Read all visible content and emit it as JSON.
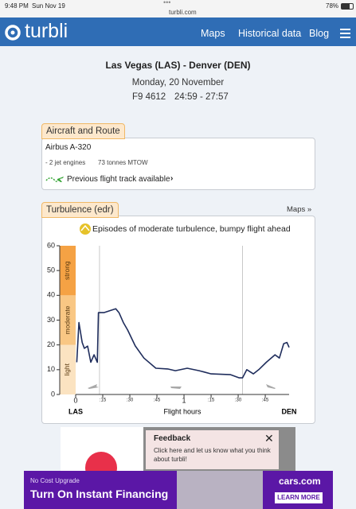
{
  "status_bar": {
    "time": "9:48 PM",
    "date": "Sun Nov 19",
    "url": "turbli.com",
    "battery": "78%"
  },
  "nav": {
    "logo": "turbli",
    "links": [
      "Maps",
      "Historical data",
      "Blog"
    ]
  },
  "flight": {
    "route": "Las Vegas (LAS) - Denver (DEN)",
    "date": "Monday, 20 November",
    "number": "F9 4612",
    "times": "24:59 - 27:57"
  },
  "aircraft": {
    "heading": "Aircraft and Route",
    "model": "Airbus A-320",
    "engines": "- 2 jet engines",
    "mtow": "73 tonnes MTOW",
    "track": "Previous flight track available"
  },
  "turbulence": {
    "heading": "Turbulence (edr)",
    "maps_link": "Maps »"
  },
  "chart_data": {
    "type": "line",
    "annotation": "Episodes of moderate turbulence, bumpy flight ahead",
    "xlabel": "Flight hours",
    "x_start_label": "LAS",
    "x_end_label": "DEN",
    "x": [
      0.01,
      0.03,
      0.06,
      0.08,
      0.11,
      0.14,
      0.17,
      0.2,
      0.21,
      0.26,
      0.33,
      0.37,
      0.4,
      0.44,
      0.48,
      0.55,
      0.63,
      0.74,
      0.85,
      0.92,
      1.03,
      1.14,
      1.25,
      1.43,
      1.51,
      1.54,
      1.58,
      1.64,
      1.69,
      1.76,
      1.84,
      1.88,
      1.92,
      1.95,
      1.97
    ],
    "values": [
      13,
      29,
      21,
      18.6,
      19.5,
      13,
      16,
      13,
      33,
      33,
      34,
      34.6,
      33,
      29,
      26,
      19.6,
      14.7,
      10.6,
      10.3,
      9.6,
      10.6,
      9.6,
      8.3,
      8,
      6.7,
      6.7,
      10,
      8.3,
      10,
      13,
      16,
      14.7,
      20.5,
      21,
      19
    ],
    "color": "#1f2d5c",
    "xlim": [
      0,
      1.97
    ],
    "ylim": [
      0,
      60
    ],
    "xticks": [
      0,
      {
        "value": 0.25,
        "label": ":15"
      },
      {
        "value": 0.5,
        "label": ":30"
      },
      {
        "value": 0.75,
        "label": ":45"
      },
      1,
      {
        "value": 1.25,
        "label": ":15"
      },
      {
        "value": 1.5,
        "label": ":30"
      },
      {
        "value": 1.75,
        "label": ":45"
      }
    ],
    "yticks": [
      0,
      10,
      20,
      30,
      40,
      50,
      60
    ],
    "bands": [
      {
        "label": "light",
        "from": 0,
        "to": 20,
        "color": "#fbe3c1"
      },
      {
        "label": "moderate",
        "from": 20,
        "to": 40,
        "color": "#f9c784"
      },
      {
        "label": "strong",
        "from": 40,
        "to": 60,
        "color": "#f5a244"
      }
    ],
    "markers": [
      0.22,
      1.54
    ]
  },
  "feedback": {
    "title": "Feedback",
    "text": "Click here and let us know what you think about turbli!"
  },
  "ad": {
    "kicker": "No Cost Upgrade",
    "headline": "Turn On Instant Financing",
    "brand": "cars.com",
    "button": "LEARN MORE"
  }
}
